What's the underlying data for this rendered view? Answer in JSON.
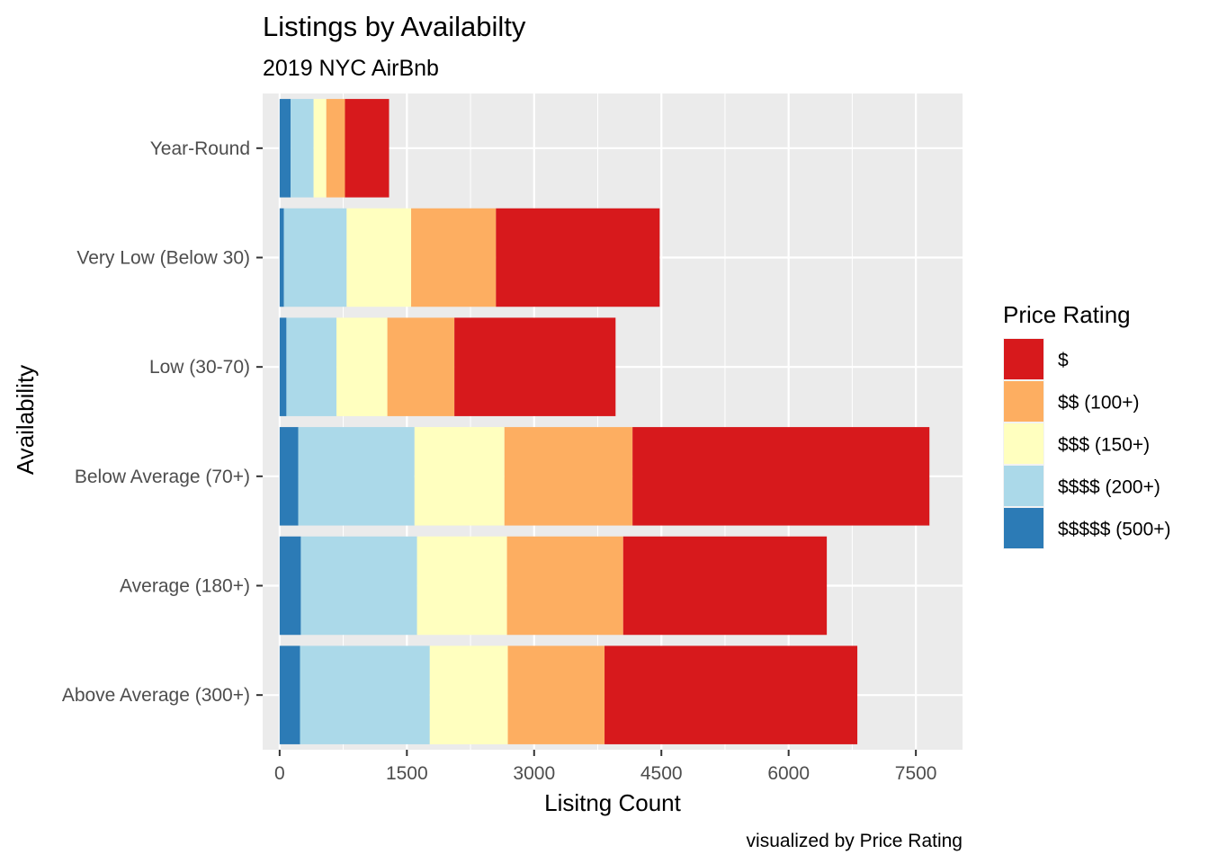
{
  "chart_data": {
    "type": "bar",
    "orientation": "horizontal",
    "stacked": true,
    "title": "Listings by Availabilty",
    "subtitle": "2019 NYC AirBnb",
    "xlabel": "Lisitng Count",
    "ylabel": "Availability",
    "caption": "visualized by Price Rating",
    "xlim": [
      -200,
      8050
    ],
    "xticks": [
      0,
      1500,
      3000,
      4500,
      6000,
      7500
    ],
    "xtick_labels": [
      "0",
      "1500",
      "3000",
      "4500",
      "6000",
      "7500"
    ],
    "grid": true,
    "legend_position": "right",
    "legend_title": "Price Rating",
    "categories": [
      "Year-Round",
      "Very Low (Below 30)",
      "Low (30-70)",
      "Below Average (70+)",
      "Average (180+)",
      "Above Average (300+)"
    ],
    "series": [
      {
        "name": "$$$$$ (500+)",
        "color": "#2C7BB6",
        "values": [
          130,
          50,
          80,
          220,
          250,
          240
        ]
      },
      {
        "name": "$$$$ (200+)",
        "color": "#ABD9E9",
        "values": [
          270,
          740,
          590,
          1370,
          1370,
          1530
        ]
      },
      {
        "name": "$$$ (150+)",
        "color": "#FFFFBF",
        "values": [
          150,
          760,
          600,
          1060,
          1060,
          920
        ]
      },
      {
        "name": "$$ (100+)",
        "color": "#FDAE61",
        "values": [
          220,
          1000,
          790,
          1510,
          1370,
          1140
        ]
      },
      {
        "name": "$",
        "color": "#D7191C",
        "values": [
          520,
          1930,
          1900,
          3500,
          2400,
          2980
        ]
      }
    ],
    "legend_order": [
      "$",
      "$$ (100+)",
      "$$$ (150+)",
      "$$$$ (200+)",
      "$$$$$ (500+)"
    ]
  }
}
